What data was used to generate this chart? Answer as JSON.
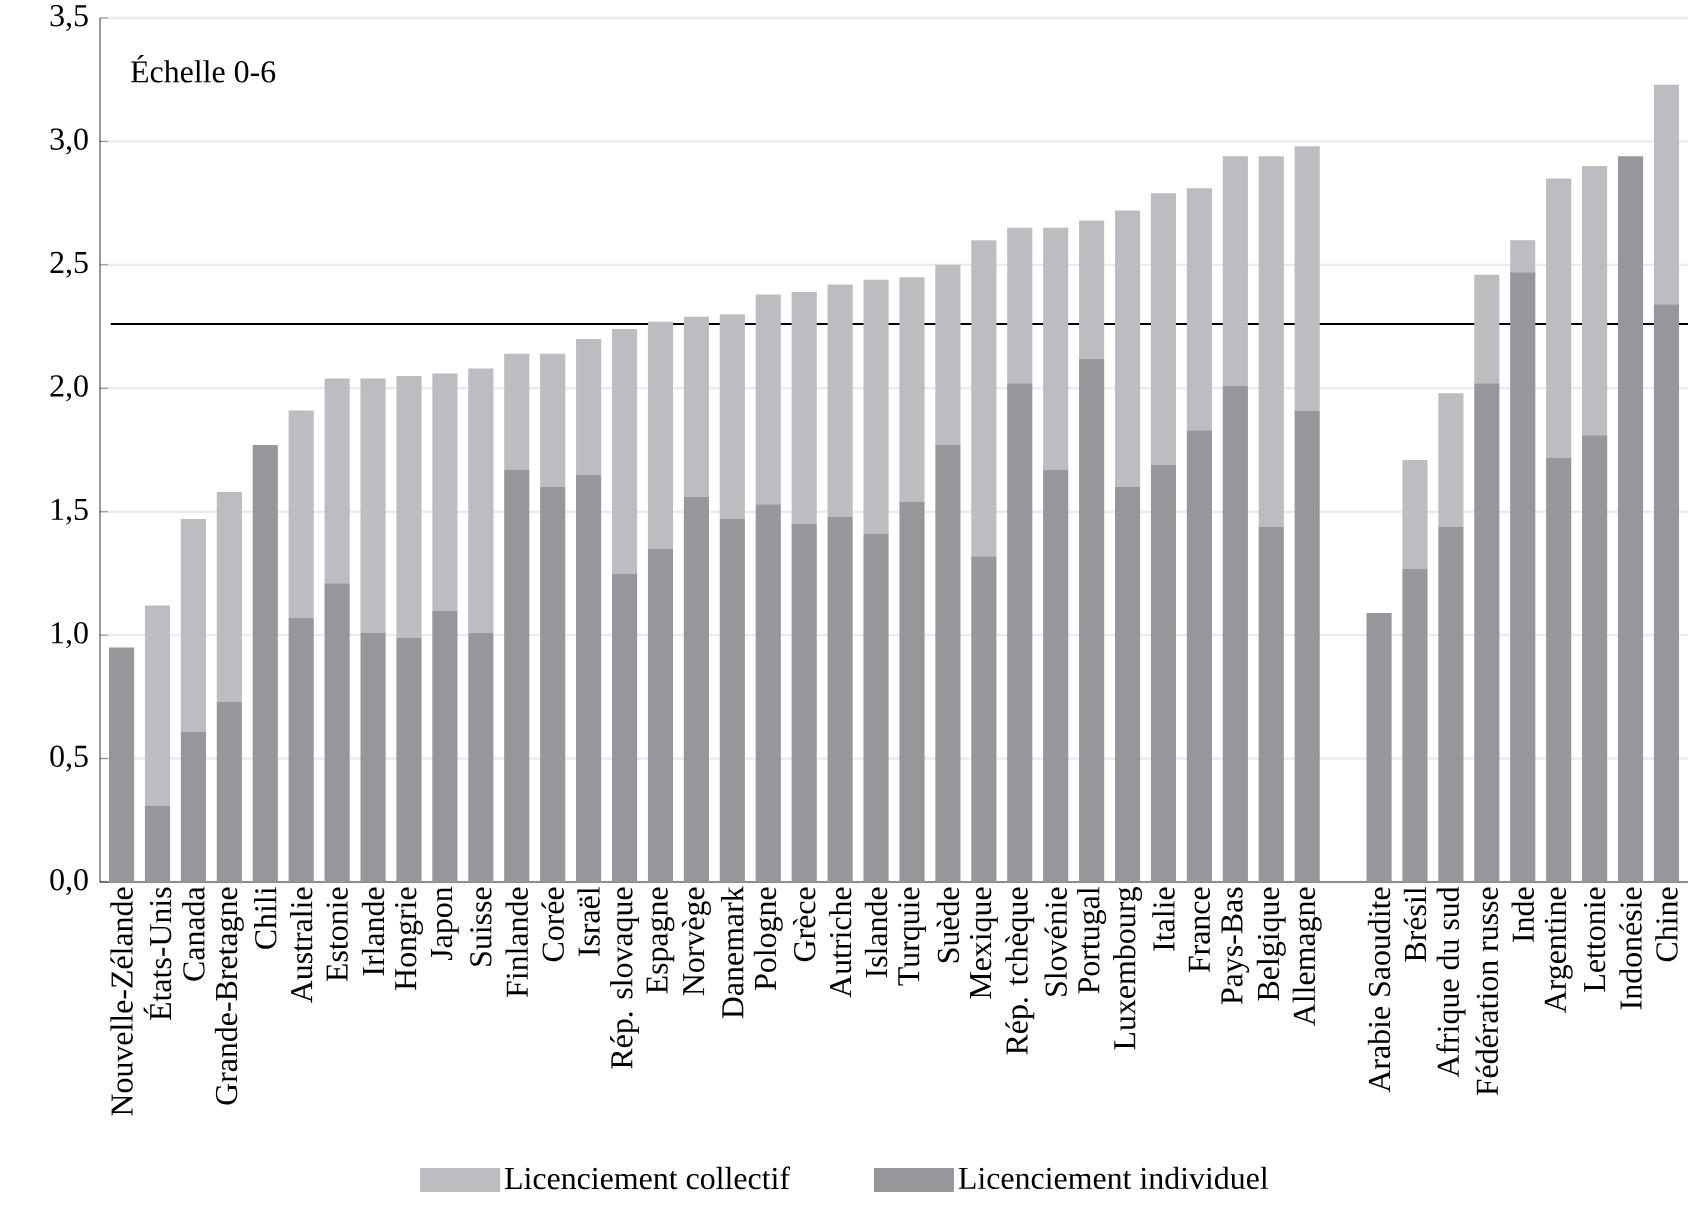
{
  "chart_data": {
    "type": "bar",
    "stacked": true,
    "categories": [
      "Nouvelle-Zélande",
      "États-Unis",
      "Canada",
      "Grande-Bretagne",
      "Chili",
      "Australie",
      "Estonie",
      "Irlande",
      "Hongrie",
      "Japon",
      "Suisse",
      "Finlande",
      "Corée",
      "Israël",
      "Rép. slovaque",
      "Espagne",
      "Norvège",
      "Danemark",
      "Pologne",
      "Grèce",
      "Autriche",
      "Islande",
      "Turquie",
      "Suède",
      "Mexique",
      "Rép. tchèque",
      "Slovénie",
      "Portugal",
      "Luxembourg",
      "Italie",
      "France",
      "Pays-Bas",
      "Belgique",
      "Allemagne",
      null,
      "Arabie Saoudite",
      "Brésil",
      "Afrique du sud",
      "Fédération russe",
      "Inde",
      "Argentine",
      "Lettonie",
      "Indonésie",
      "Chine"
    ],
    "series": [
      {
        "name": "Licenciement individuel",
        "color": "#96979b",
        "values": [
          0.95,
          0.31,
          0.61,
          0.73,
          1.77,
          1.07,
          1.21,
          1.01,
          0.99,
          1.1,
          1.01,
          1.67,
          1.6,
          1.65,
          1.25,
          1.35,
          1.56,
          1.47,
          1.53,
          1.45,
          1.48,
          1.41,
          1.54,
          1.77,
          1.32,
          2.02,
          1.67,
          2.12,
          1.6,
          1.69,
          1.83,
          2.01,
          1.44,
          1.91,
          null,
          1.09,
          1.27,
          1.44,
          2.02,
          2.47,
          1.72,
          1.81,
          2.94,
          2.34
        ]
      },
      {
        "name": "Licenciement collectif",
        "color": "#bcbdc1",
        "values": [
          0,
          0.81,
          0.86,
          0.85,
          0,
          0.84,
          0.83,
          1.03,
          1.06,
          0.96,
          1.07,
          0.47,
          0.54,
          0.55,
          0.99,
          0.92,
          0.73,
          0.83,
          0.85,
          0.94,
          0.94,
          1.03,
          0.91,
          0.73,
          1.28,
          0.63,
          0.98,
          0.56,
          1.12,
          1.1,
          0.98,
          0.93,
          1.5,
          1.07,
          null,
          0,
          0.44,
          0.54,
          0.44,
          0.13,
          1.13,
          1.09,
          0,
          0.89
        ]
      }
    ],
    "ylim": [
      0,
      3.5
    ],
    "yticks": [
      {
        "value": 0,
        "label": "0,0"
      },
      {
        "value": 0.5,
        "label": "0,5"
      },
      {
        "value": 1,
        "label": "1,0"
      },
      {
        "value": 1.5,
        "label": "1,5"
      },
      {
        "value": 2,
        "label": "2,0"
      },
      {
        "value": 2.5,
        "label": "2,5"
      },
      {
        "value": 3,
        "label": "3,0"
      },
      {
        "value": 3.5,
        "label": "3,5"
      }
    ],
    "ref_lines": [
      {
        "axis": "y",
        "value": 2.26,
        "color": "#000000"
      }
    ],
    "annotations": [
      "Échelle 0-6"
    ],
    "grid": "y",
    "legend": "bottom"
  }
}
